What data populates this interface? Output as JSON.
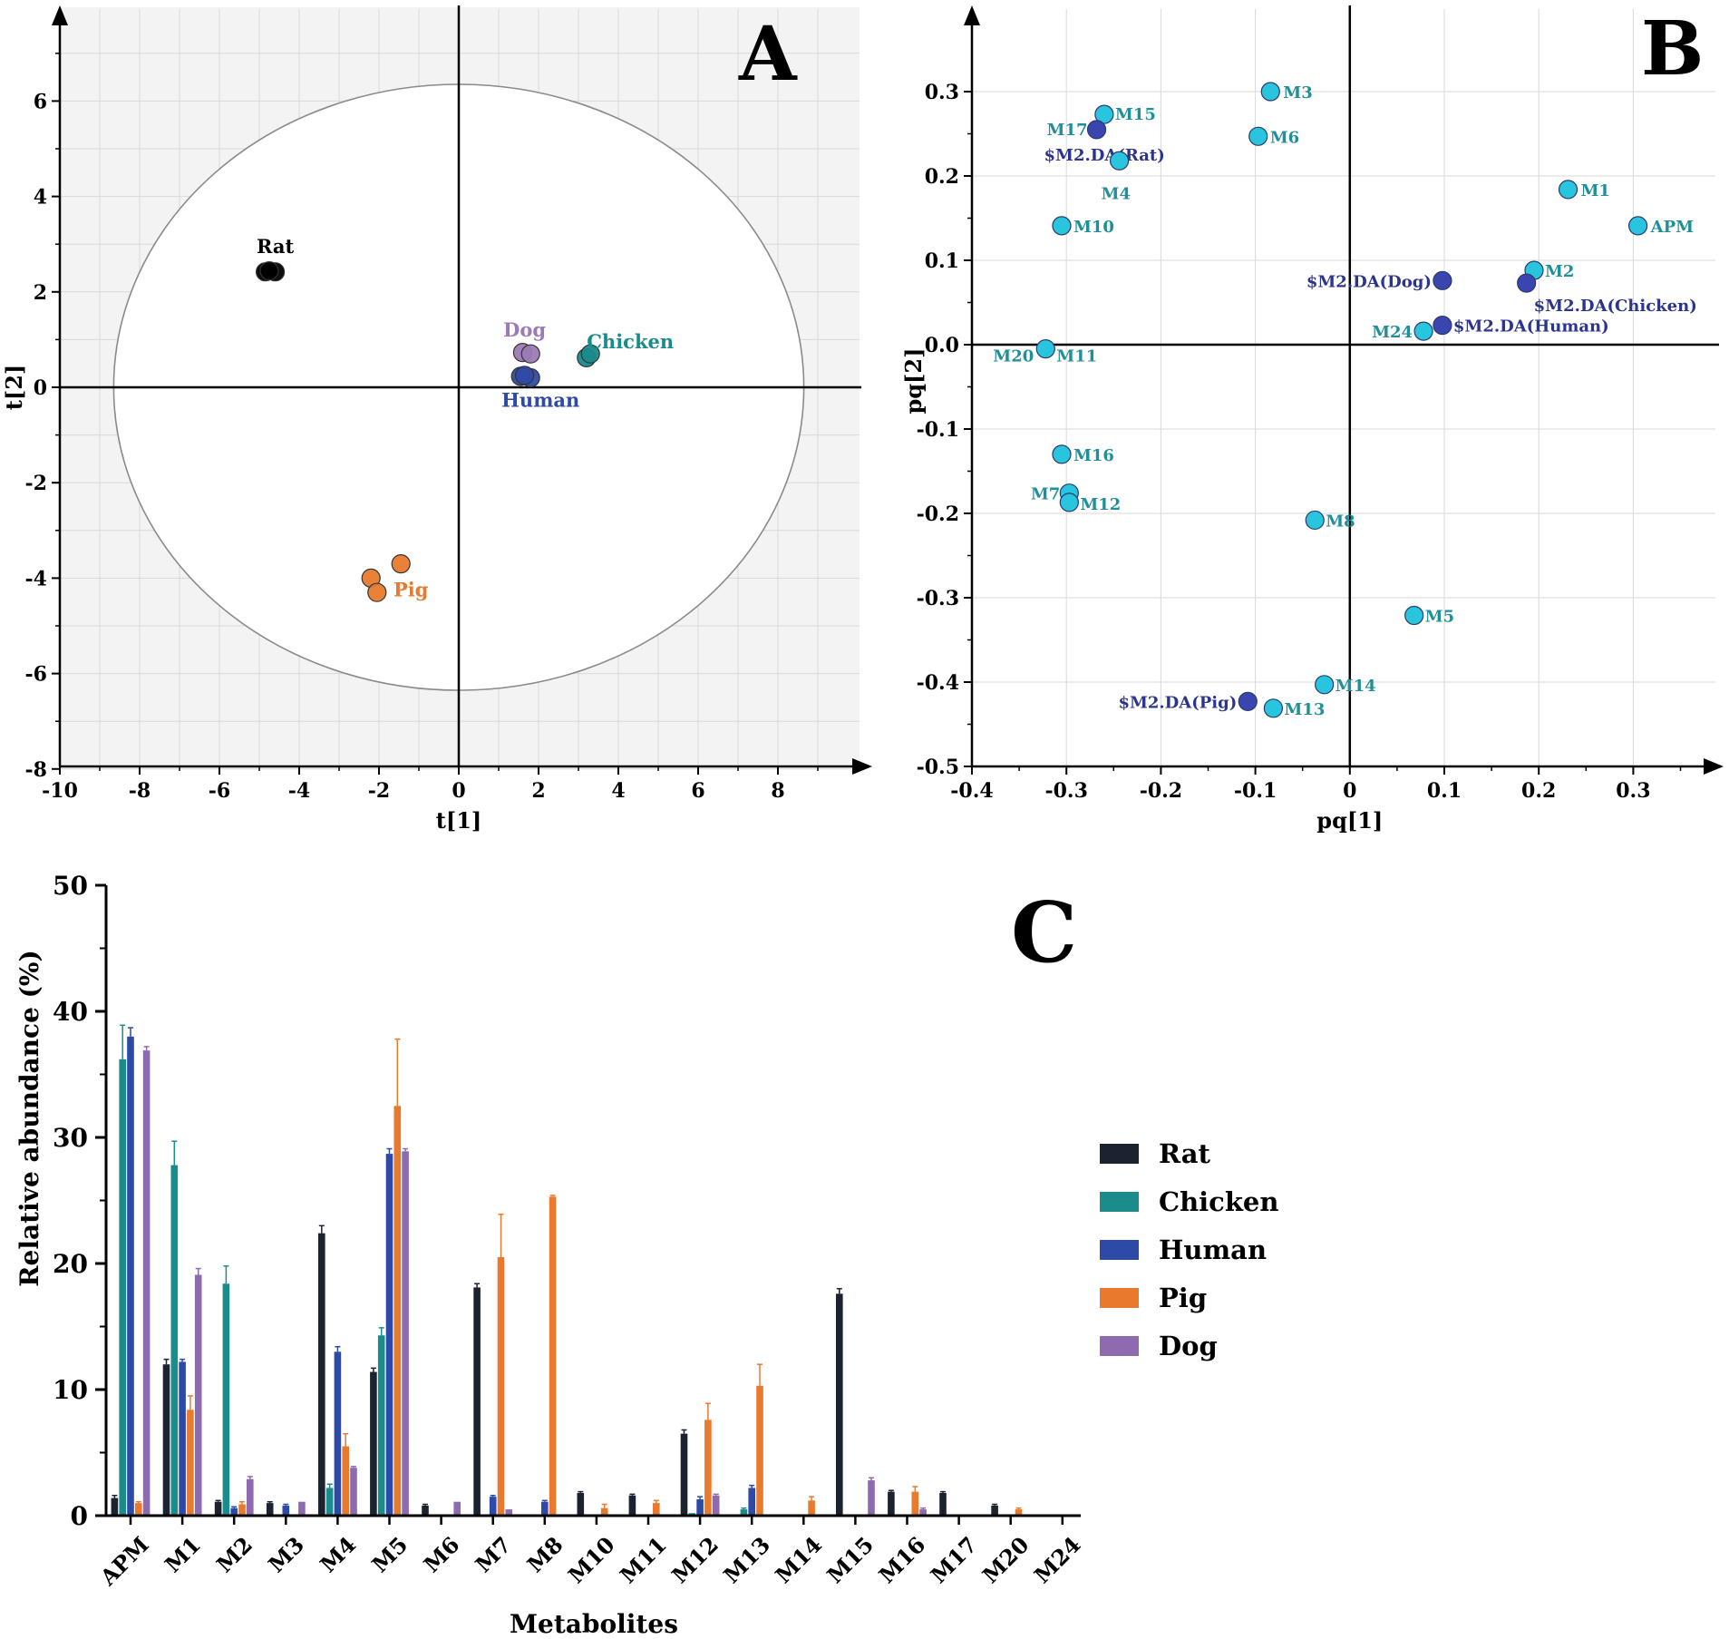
{
  "chart_data": [
    {
      "panel": "A",
      "type": "scatter",
      "panel_label": "A",
      "xlabel": "t[1]",
      "ylabel": "t[2]",
      "xlim": [
        -10,
        10
      ],
      "ylim": [
        -8,
        8
      ],
      "xticks": [
        -10,
        -8,
        -6,
        -4,
        -2,
        0,
        2,
        4,
        6,
        8
      ],
      "yticks": [
        -8,
        -6,
        -4,
        -2,
        0,
        2,
        4,
        6
      ],
      "ellipse": {
        "cx": 0,
        "cy": 0,
        "rx": 8.65,
        "ry": 6.35
      },
      "groups": [
        {
          "name": "Rat",
          "color": "#000000",
          "points": [
            [
              -4.85,
              2.42
            ],
            [
              -4.6,
              2.42
            ],
            [
              -4.75,
              2.44
            ]
          ],
          "label_at": [
            -4.6,
            2.95
          ]
        },
        {
          "name": "Dog",
          "color": "#9b7ab5",
          "points": [
            [
              1.6,
              0.73
            ],
            [
              1.8,
              0.7
            ]
          ],
          "label_at": [
            1.65,
            1.2
          ]
        },
        {
          "name": "Chicken",
          "color": "#1a8a8a",
          "points": [
            [
              3.2,
              0.62
            ],
            [
              3.3,
              0.7
            ]
          ],
          "label_at": [
            4.3,
            0.95
          ]
        },
        {
          "name": "Human",
          "color": "#2f4aa6",
          "points": [
            [
              1.55,
              0.23
            ],
            [
              1.8,
              0.2
            ],
            [
              1.65,
              0.25
            ]
          ],
          "label_at": [
            2.05,
            -0.28
          ]
        },
        {
          "name": "Pig",
          "color": "#e87a2d",
          "points": [
            [
              -1.45,
              -3.7
            ],
            [
              -2.2,
              -4.0
            ],
            [
              -2.05,
              -4.3
            ]
          ],
          "label_at": [
            -1.2,
            -4.25
          ]
        }
      ]
    },
    {
      "panel": "B",
      "type": "scatter",
      "panel_label": "B",
      "xlabel": "pq[1]",
      "ylabel": "pq[2]",
      "xlim": [
        -0.4,
        0.4
      ],
      "ylim": [
        -0.5,
        0.4
      ],
      "xticks": [
        -0.4,
        -0.3,
        -0.2,
        -0.1,
        0,
        0.1,
        0.2,
        0.3
      ],
      "xtick_labels": [
        "-0.4",
        "-0.3",
        "-0.2",
        "-0.1",
        "0",
        "0.1",
        "0.2",
        "0.3"
      ],
      "yticks": [
        -0.5,
        -0.4,
        -0.3,
        -0.2,
        -0.1,
        0.0,
        0.1,
        0.2,
        0.3
      ],
      "ytick_labels": [
        "-0.5",
        "-0.4",
        "-0.3",
        "-0.2",
        "-0.1",
        "0.0",
        "0.1",
        "0.2",
        "0.3"
      ],
      "points": [
        {
          "label": "M3",
          "x": -0.084,
          "y": 0.3,
          "kind": "metabolite"
        },
        {
          "label": "M15",
          "x": -0.26,
          "y": 0.273,
          "kind": "metabolite"
        },
        {
          "label": "M17",
          "x": -0.268,
          "y": 0.255,
          "kind": "group"
        },
        {
          "label": "$M2.DA(Rat)",
          "x": -0.268,
          "y": 0.255,
          "kind": "group_label"
        },
        {
          "label": "M4",
          "x": -0.244,
          "y": 0.218,
          "kind": "metabolite"
        },
        {
          "label": "M6",
          "x": -0.097,
          "y": 0.247,
          "kind": "metabolite"
        },
        {
          "label": "M1",
          "x": 0.231,
          "y": 0.184,
          "kind": "metabolite"
        },
        {
          "label": "APM",
          "x": 0.305,
          "y": 0.141,
          "kind": "metabolite"
        },
        {
          "label": "M10",
          "x": -0.305,
          "y": 0.141,
          "kind": "metabolite"
        },
        {
          "label": "M2",
          "x": 0.195,
          "y": 0.088,
          "kind": "metabolite"
        },
        {
          "label": "$M2.DA(Dog)",
          "x": 0.098,
          "y": 0.076,
          "kind": "group"
        },
        {
          "label": "$M2.DA(Chicken)",
          "x": 0.187,
          "y": 0.073,
          "kind": "group"
        },
        {
          "label": "$M2.DA(Human)",
          "x": 0.098,
          "y": 0.023,
          "kind": "group"
        },
        {
          "label": "M24",
          "x": 0.078,
          "y": 0.016,
          "kind": "metabolite"
        },
        {
          "label": "M20",
          "x": -0.322,
          "y": -0.005,
          "kind": "metabolite"
        },
        {
          "label": "M11",
          "x": -0.322,
          "y": -0.005,
          "kind": "metabolite_label"
        },
        {
          "label": "M16",
          "x": -0.305,
          "y": -0.13,
          "kind": "metabolite"
        },
        {
          "label": "M7",
          "x": -0.297,
          "y": -0.176,
          "kind": "metabolite"
        },
        {
          "label": "M12",
          "x": -0.297,
          "y": -0.187,
          "kind": "metabolite"
        },
        {
          "label": "M8",
          "x": -0.037,
          "y": -0.208,
          "kind": "metabolite"
        },
        {
          "label": "M5",
          "x": 0.068,
          "y": -0.321,
          "kind": "metabolite"
        },
        {
          "label": "M14",
          "x": -0.027,
          "y": -0.403,
          "kind": "metabolite"
        },
        {
          "label": "$M2.DA(Pig)",
          "x": -0.108,
          "y": -0.423,
          "kind": "group"
        },
        {
          "label": "M13",
          "x": -0.081,
          "y": -0.431,
          "kind": "metabolite"
        }
      ],
      "colors": {
        "metabolite": "#29c5de",
        "group": "#3a45b0",
        "label_teal": "#1f8f99",
        "label_navy": "#2b3590"
      }
    },
    {
      "panel": "C",
      "type": "bar",
      "panel_label": "C",
      "title": "",
      "xlabel": "Metabolites",
      "ylabel": "Relative abundance (%)",
      "ylim": [
        0,
        50
      ],
      "yticks": [
        0,
        10,
        20,
        30,
        40,
        50
      ],
      "categories": [
        "APM",
        "M1",
        "M2",
        "M3",
        "M4",
        "M5",
        "M6",
        "M7",
        "M8",
        "M10",
        "M11",
        "M12",
        "M13",
        "M14",
        "M15",
        "M16",
        "M17",
        "M20",
        "M24"
      ],
      "series": [
        {
          "name": "Rat",
          "color": "#1b2230",
          "values": [
            1.4,
            12.0,
            1.1,
            1.0,
            22.4,
            11.4,
            0.8,
            18.1,
            0.0,
            1.8,
            1.6,
            6.5,
            0.0,
            0.0,
            17.6,
            1.9,
            1.8,
            0.8,
            0.0
          ],
          "errors": [
            0.2,
            0.4,
            0.1,
            0.1,
            0.6,
            0.3,
            0.1,
            0.3,
            0,
            0.1,
            0.1,
            0.3,
            0,
            0,
            0.4,
            0.1,
            0.1,
            0.1,
            0
          ]
        },
        {
          "name": "Chicken",
          "color": "#1b8c8c",
          "values": [
            36.2,
            27.8,
            18.4,
            0.0,
            2.2,
            14.3,
            0.0,
            0.0,
            0.0,
            0.0,
            0.0,
            0.2,
            0.5,
            0.1,
            0.0,
            0.0,
            0.0,
            0.0,
            0.0
          ],
          "errors": [
            2.7,
            1.9,
            1.4,
            0,
            0.3,
            0.6,
            0,
            0,
            0,
            0,
            0,
            0,
            0.1,
            0,
            0,
            0,
            0,
            0,
            0
          ]
        },
        {
          "name": "Human",
          "color": "#2d4aa8",
          "values": [
            38.0,
            12.2,
            0.6,
            0.8,
            13.0,
            28.7,
            0.0,
            1.5,
            1.1,
            0.0,
            0.0,
            1.3,
            2.2,
            0.0,
            0.0,
            0.0,
            0.0,
            0.0,
            0.0
          ],
          "errors": [
            0.7,
            0.2,
            0.1,
            0.1,
            0.4,
            0.4,
            0,
            0.1,
            0.1,
            0,
            0,
            0.2,
            0.2,
            0,
            0,
            0,
            0,
            0,
            0
          ]
        },
        {
          "name": "Pig",
          "color": "#e97a2d",
          "values": [
            1.0,
            8.4,
            0.9,
            0.0,
            5.5,
            32.5,
            0.0,
            20.5,
            25.3,
            0.6,
            1.0,
            7.6,
            10.3,
            1.2,
            0.0,
            1.9,
            0.0,
            0.5,
            0.0
          ],
          "errors": [
            0.1,
            1.1,
            0.2,
            0,
            1.0,
            5.3,
            0,
            3.4,
            0.1,
            0.3,
            0.2,
            1.3,
            1.7,
            0.3,
            0,
            0.4,
            0,
            0.1,
            0
          ]
        },
        {
          "name": "Dog",
          "color": "#8e6bb0",
          "values": [
            36.9,
            19.1,
            2.9,
            1.1,
            3.8,
            28.9,
            1.1,
            0.5,
            0.0,
            0.0,
            0.0,
            1.6,
            0.0,
            0.0,
            2.8,
            0.5,
            0.0,
            0.0,
            0.0
          ],
          "errors": [
            0.3,
            0.5,
            0.2,
            0,
            0.1,
            0.2,
            0,
            0,
            0,
            0,
            0,
            0.1,
            0,
            0,
            0.2,
            0.1,
            0,
            0,
            0
          ]
        }
      ],
      "legend": [
        "Rat",
        "Chicken",
        "Human",
        "Pig",
        "Dog"
      ],
      "legend_position": "right"
    }
  ]
}
